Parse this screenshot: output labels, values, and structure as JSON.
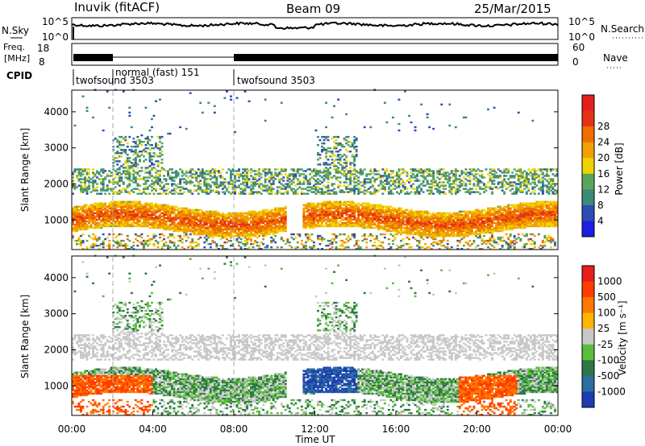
{
  "header": {
    "station_label": "Inuvik (fitACF)",
    "beam_label": "Beam 09",
    "date_label": "25/Mar/2015"
  },
  "status_panels": {
    "nsky_label": "N.Sky",
    "nsky_ticks": [
      "10^5",
      "10^0"
    ],
    "nsearch_label": "N.Search",
    "nsearch_ticks": [
      "10^5",
      "10^0"
    ],
    "freq_label_1": "Freq.",
    "freq_label_2": "[MHz]",
    "freq_ticks": [
      "18",
      "8"
    ],
    "nave_label": "Nave",
    "nave_ticks": [
      "60",
      "0"
    ],
    "cpid_label": "CPID",
    "cpid_segments": [
      {
        "label": "twofsound 3503",
        "start_hour": 0.0,
        "end_hour": 2.0
      },
      {
        "label": "normal (fast) 151",
        "start_hour": 2.0,
        "end_hour": 8.0
      },
      {
        "label": "twofsound 3503",
        "start_hour": 8.0,
        "end_hour": 24.0
      }
    ]
  },
  "colorbars": {
    "power": {
      "label": "Power [dB]",
      "ticks": [
        "4",
        "8",
        "12",
        "16",
        "20",
        "24",
        "28"
      ],
      "colors": [
        "#1e1ee0",
        "#2d4db4",
        "#3c8a78",
        "#5aa55a",
        "#f0d200",
        "#f0a000",
        "#f06e00",
        "#e63214",
        "#e61e1e"
      ]
    },
    "velocity": {
      "label": "Velocity [m s⁻¹]",
      "ticks": [
        "1000",
        "500",
        "100",
        "25",
        "-25",
        "-100",
        "-500",
        "-1000"
      ],
      "colors": [
        "#1e3cb4",
        "#2d6ea0",
        "#2d7846",
        "#5abe3c",
        "#c8c8c8",
        "#ffb400",
        "#ff7800",
        "#ff3c00",
        "#e61e1e"
      ]
    }
  },
  "axes": {
    "ylabel": "Slant Range [km]",
    "xlabel": "Time UT"
  },
  "chart_data": [
    {
      "type": "heatmap",
      "panel": "power",
      "xlabel": "Time UT",
      "ylabel": "Slant Range [km]",
      "x_ticks": [
        "00:00",
        "04:00",
        "08:00",
        "12:00",
        "16:00",
        "20:00",
        "00:00"
      ],
      "y_ticks": [
        1000,
        2000,
        3000,
        4000
      ],
      "xlim_hours": [
        0,
        24
      ],
      "ylim": [
        180,
        4600
      ],
      "colorbar_label": "Power [dB]",
      "colorbar_ticks": [
        4,
        8,
        12,
        16,
        20,
        24,
        28
      ]
    },
    {
      "type": "heatmap",
      "panel": "velocity",
      "xlabel": "Time UT",
      "ylabel": "Slant Range [km]",
      "x_ticks": [
        "00:00",
        "04:00",
        "08:00",
        "12:00",
        "16:00",
        "20:00",
        "00:00"
      ],
      "y_ticks": [
        1000,
        2000,
        3000,
        4000
      ],
      "xlim_hours": [
        0,
        24
      ],
      "ylim": [
        180,
        4600
      ],
      "colorbar_label": "Velocity [m s⁻¹]",
      "colorbar_ticks": [
        1000,
        500,
        100,
        25,
        -25,
        -100,
        -500,
        -1000
      ]
    }
  ]
}
